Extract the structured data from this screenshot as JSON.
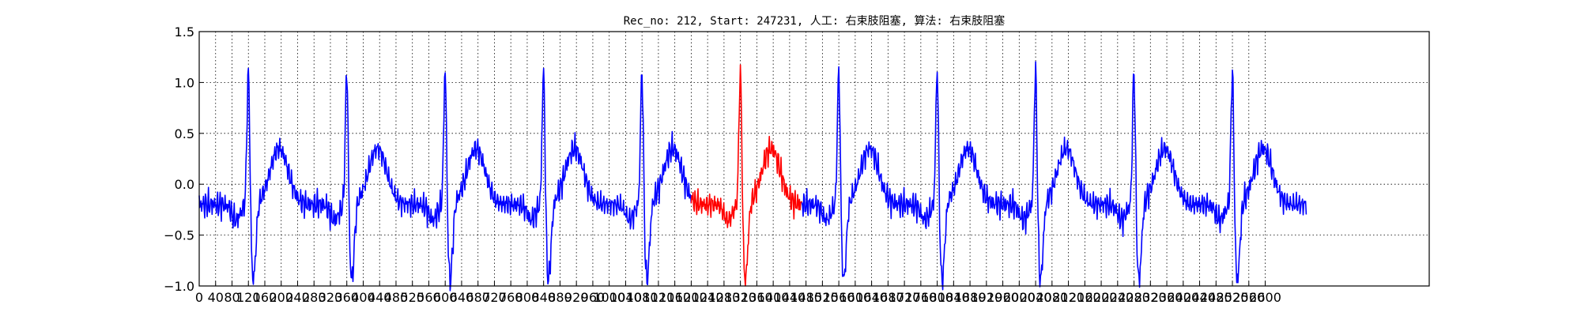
{
  "chart_data": {
    "type": "line",
    "title": "Rec_no: 212, Start: 247231, 人工: 右束肢阻塞, 算法: 右束肢阻塞",
    "xlabel": "",
    "ylabel": "",
    "xlim": [
      0,
      3000
    ],
    "ylim": [
      -1.0,
      1.5
    ],
    "grid": true,
    "legend": "none",
    "x_ticks": [
      0,
      40,
      80,
      120,
      160,
      200,
      240,
      280,
      320,
      360,
      400,
      440,
      480,
      520,
      560,
      600,
      640,
      680,
      720,
      760,
      800,
      840,
      880,
      920,
      960,
      1000,
      1040,
      1080,
      1120,
      1160,
      1200,
      1240,
      1280,
      1320,
      1360,
      1400,
      1440,
      1480,
      1520,
      1560,
      1600,
      1640,
      1680,
      1720,
      1760,
      1800,
      1840,
      1880,
      1920,
      1960,
      2000,
      2040,
      2080,
      2120,
      2160,
      2200,
      2240,
      2280,
      2320,
      2360,
      2400,
      2440,
      2480,
      2520,
      2560,
      2600
    ],
    "y_ticks": [
      -1.0,
      -0.5,
      0.0,
      0.5,
      1.0,
      1.5
    ],
    "y_tick_labels": [
      "−1.0",
      "−0.5",
      "0.0",
      "0.5",
      "1.0",
      "1.5"
    ],
    "beat_peaks_x": [
      120,
      360,
      600,
      840,
      1080,
      1320,
      1560,
      1800,
      2040,
      2280,
      2520
    ],
    "series": [
      {
        "color": "#0000ff",
        "x_range": [
          0,
          1200
        ]
      },
      {
        "color": "#ff0000",
        "x_range": [
          1200,
          1470
        ]
      },
      {
        "color": "#0000ff",
        "x_range": [
          1470,
          2700
        ]
      }
    ]
  }
}
